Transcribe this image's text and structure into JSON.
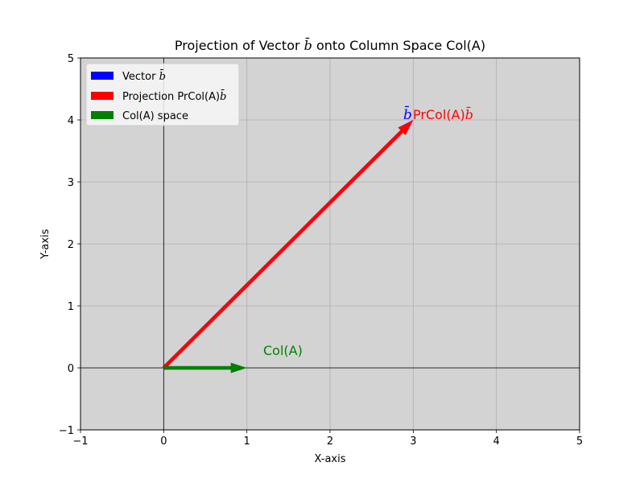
{
  "chart_data": {
    "type": "vector",
    "title": "Projection of Vector b̄ onto Column Space Col(A)",
    "xlabel": "X-axis",
    "ylabel": "Y-axis",
    "xlim": [
      -1,
      5
    ],
    "ylim": [
      -1,
      5
    ],
    "xticks": [
      -1,
      0,
      1,
      2,
      3,
      4,
      5
    ],
    "yticks": [
      -1,
      0,
      1,
      2,
      3,
      4,
      5
    ],
    "xtick_labels": [
      "−1",
      "0",
      "1",
      "2",
      "3",
      "4",
      "5"
    ],
    "ytick_labels": [
      "−1",
      "0",
      "1",
      "2",
      "3",
      "4",
      "5"
    ],
    "grid": true,
    "legend_position": "upper-left",
    "background_color": "#d3d3d3",
    "series": [
      {
        "name": "Vector b̄",
        "color": "#0000ff",
        "start": [
          0,
          0
        ],
        "end": [
          3,
          4
        ]
      },
      {
        "name": "Projection PrCol(A)b̄",
        "color": "#ff0000",
        "start": [
          0,
          0
        ],
        "end": [
          3,
          4
        ]
      },
      {
        "name": "Col(A) space",
        "color": "#008000",
        "start": [
          0,
          0
        ],
        "end": [
          1,
          0
        ]
      }
    ],
    "annotations": [
      {
        "text": "b̄",
        "color": "#0000ff",
        "at": [
          2.9,
          4.1
        ]
      },
      {
        "text": "PrCol(A)b̄",
        "color": "#ff0000",
        "at": [
          3.0,
          4.1
        ]
      },
      {
        "text": "Col(A)",
        "color": "#008000",
        "at": [
          1.2,
          0.2
        ]
      }
    ]
  }
}
